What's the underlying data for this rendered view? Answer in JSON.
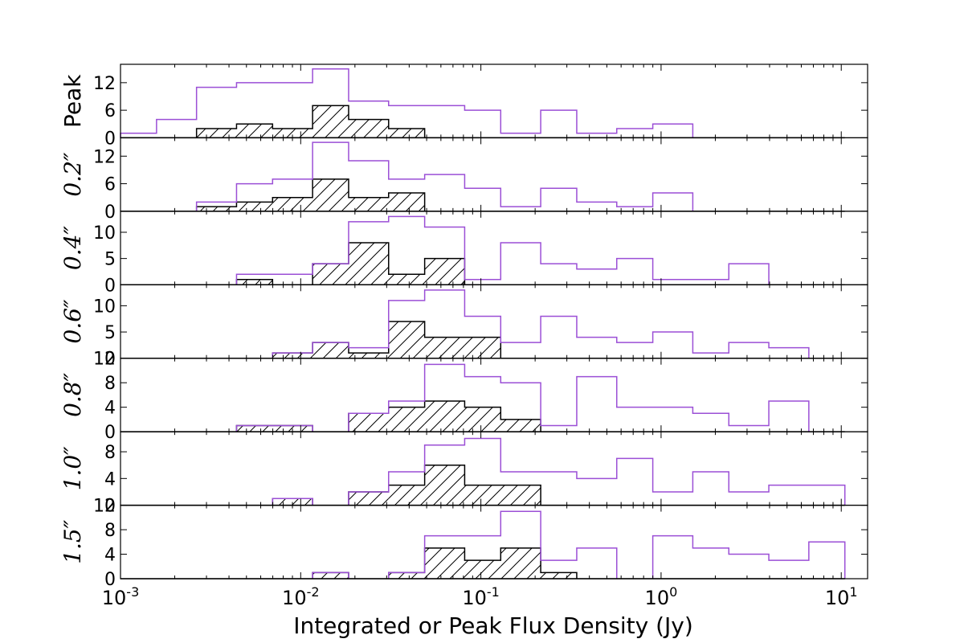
{
  "chart_data": {
    "type": "histogram",
    "xlabel": "Integrated or Peak Flux Density (Jy)",
    "xscale": "log",
    "xlim": [
      0.001,
      14
    ],
    "xtick_labels": [
      "10-3",
      "10-2",
      "10-1",
      "100",
      "101"
    ],
    "bin_edges_log10": [
      -3.0,
      -2.8,
      -2.578,
      -2.356,
      -2.156,
      -1.934,
      -1.734,
      -1.512,
      -1.312,
      -1.09,
      -0.89,
      -0.668,
      -0.468,
      -0.246,
      -0.046,
      0.176,
      0.376,
      0.598,
      0.82,
      1.02
    ],
    "colors": {
      "all_sources": "#9b4fd6",
      "hatched_subset": "#000000"
    },
    "panels": [
      {
        "label": "Peak",
        "ylim": [
          0,
          16
        ],
        "yticks": [
          0,
          6,
          12
        ],
        "all_sources": [
          1,
          4,
          11,
          12,
          12,
          15,
          8,
          7,
          7,
          6,
          1,
          6,
          1,
          2,
          3,
          0,
          0,
          0,
          0
        ],
        "hatched_subset": [
          0,
          0,
          2,
          3,
          2,
          7,
          4,
          2,
          0,
          0,
          0,
          0,
          0,
          0,
          0,
          0,
          0,
          0,
          0
        ]
      },
      {
        "label": "0.2″",
        "ylim": [
          0,
          16
        ],
        "yticks": [
          0,
          6,
          12
        ],
        "all_sources": [
          0,
          0,
          2,
          6,
          7,
          15,
          11,
          7,
          8,
          5,
          1,
          5,
          2,
          1,
          4,
          0,
          0,
          0,
          0
        ],
        "hatched_subset": [
          0,
          0,
          1,
          2,
          3,
          7,
          3,
          4,
          0,
          0,
          0,
          0,
          0,
          0,
          0,
          0,
          0,
          0,
          0
        ]
      },
      {
        "label": "0.4″",
        "ylim": [
          0,
          14
        ],
        "yticks": [
          0,
          5,
          10
        ],
        "all_sources": [
          0,
          0,
          0,
          2,
          2,
          4,
          12,
          13,
          11,
          1,
          8,
          4,
          3,
          5,
          1,
          1,
          4,
          0,
          0
        ],
        "hatched_subset": [
          0,
          0,
          0,
          1,
          0,
          4,
          8,
          2,
          5,
          0,
          0,
          0,
          0,
          0,
          0,
          0,
          0,
          0,
          0
        ]
      },
      {
        "label": "0.6″",
        "ylim": [
          0,
          14
        ],
        "yticks": [
          0,
          5,
          10
        ],
        "all_sources": [
          0,
          0,
          0,
          0,
          1,
          3,
          2,
          11,
          13,
          8,
          3,
          8,
          4,
          3,
          5,
          1,
          3,
          2,
          0
        ],
        "hatched_subset": [
          0,
          0,
          0,
          0,
          1,
          3,
          1,
          7,
          4,
          4,
          0,
          0,
          0,
          0,
          0,
          0,
          0,
          0,
          0
        ]
      },
      {
        "label": "0.8″",
        "ylim": [
          0,
          12
        ],
        "yticks": [
          0,
          4,
          8,
          12
        ],
        "all_sources": [
          0,
          0,
          0,
          1,
          1,
          0,
          3,
          5,
          11,
          9,
          8,
          1,
          9,
          4,
          4,
          3,
          1,
          5,
          0
        ],
        "hatched_subset": [
          0,
          0,
          0,
          1,
          1,
          0,
          3,
          4,
          5,
          4,
          2,
          0,
          0,
          0,
          0,
          0,
          0,
          0,
          0
        ]
      },
      {
        "label": "1.0″",
        "ylim": [
          0,
          11
        ],
        "yticks": [
          0,
          4,
          8
        ],
        "all_sources": [
          0,
          0,
          0,
          0,
          1,
          0,
          2,
          5,
          9,
          10,
          5,
          5,
          4,
          7,
          2,
          5,
          2,
          3,
          3
        ],
        "hatched_subset": [
          0,
          0,
          0,
          0,
          1,
          0,
          2,
          3,
          6,
          3,
          3,
          0,
          0,
          0,
          0,
          0,
          0,
          0,
          0
        ]
      },
      {
        "label": "1.5″",
        "ylim": [
          0,
          12
        ],
        "yticks": [
          0,
          4,
          8,
          12
        ],
        "all_sources": [
          0,
          0,
          0,
          0,
          0,
          1,
          0,
          1,
          7,
          7,
          11,
          3,
          5,
          0,
          7,
          5,
          4,
          3,
          6
        ],
        "hatched_subset": [
          0,
          0,
          0,
          0,
          0,
          1,
          0,
          1,
          5,
          3,
          5,
          1,
          0,
          0,
          0,
          0,
          0,
          0,
          0
        ]
      }
    ]
  }
}
